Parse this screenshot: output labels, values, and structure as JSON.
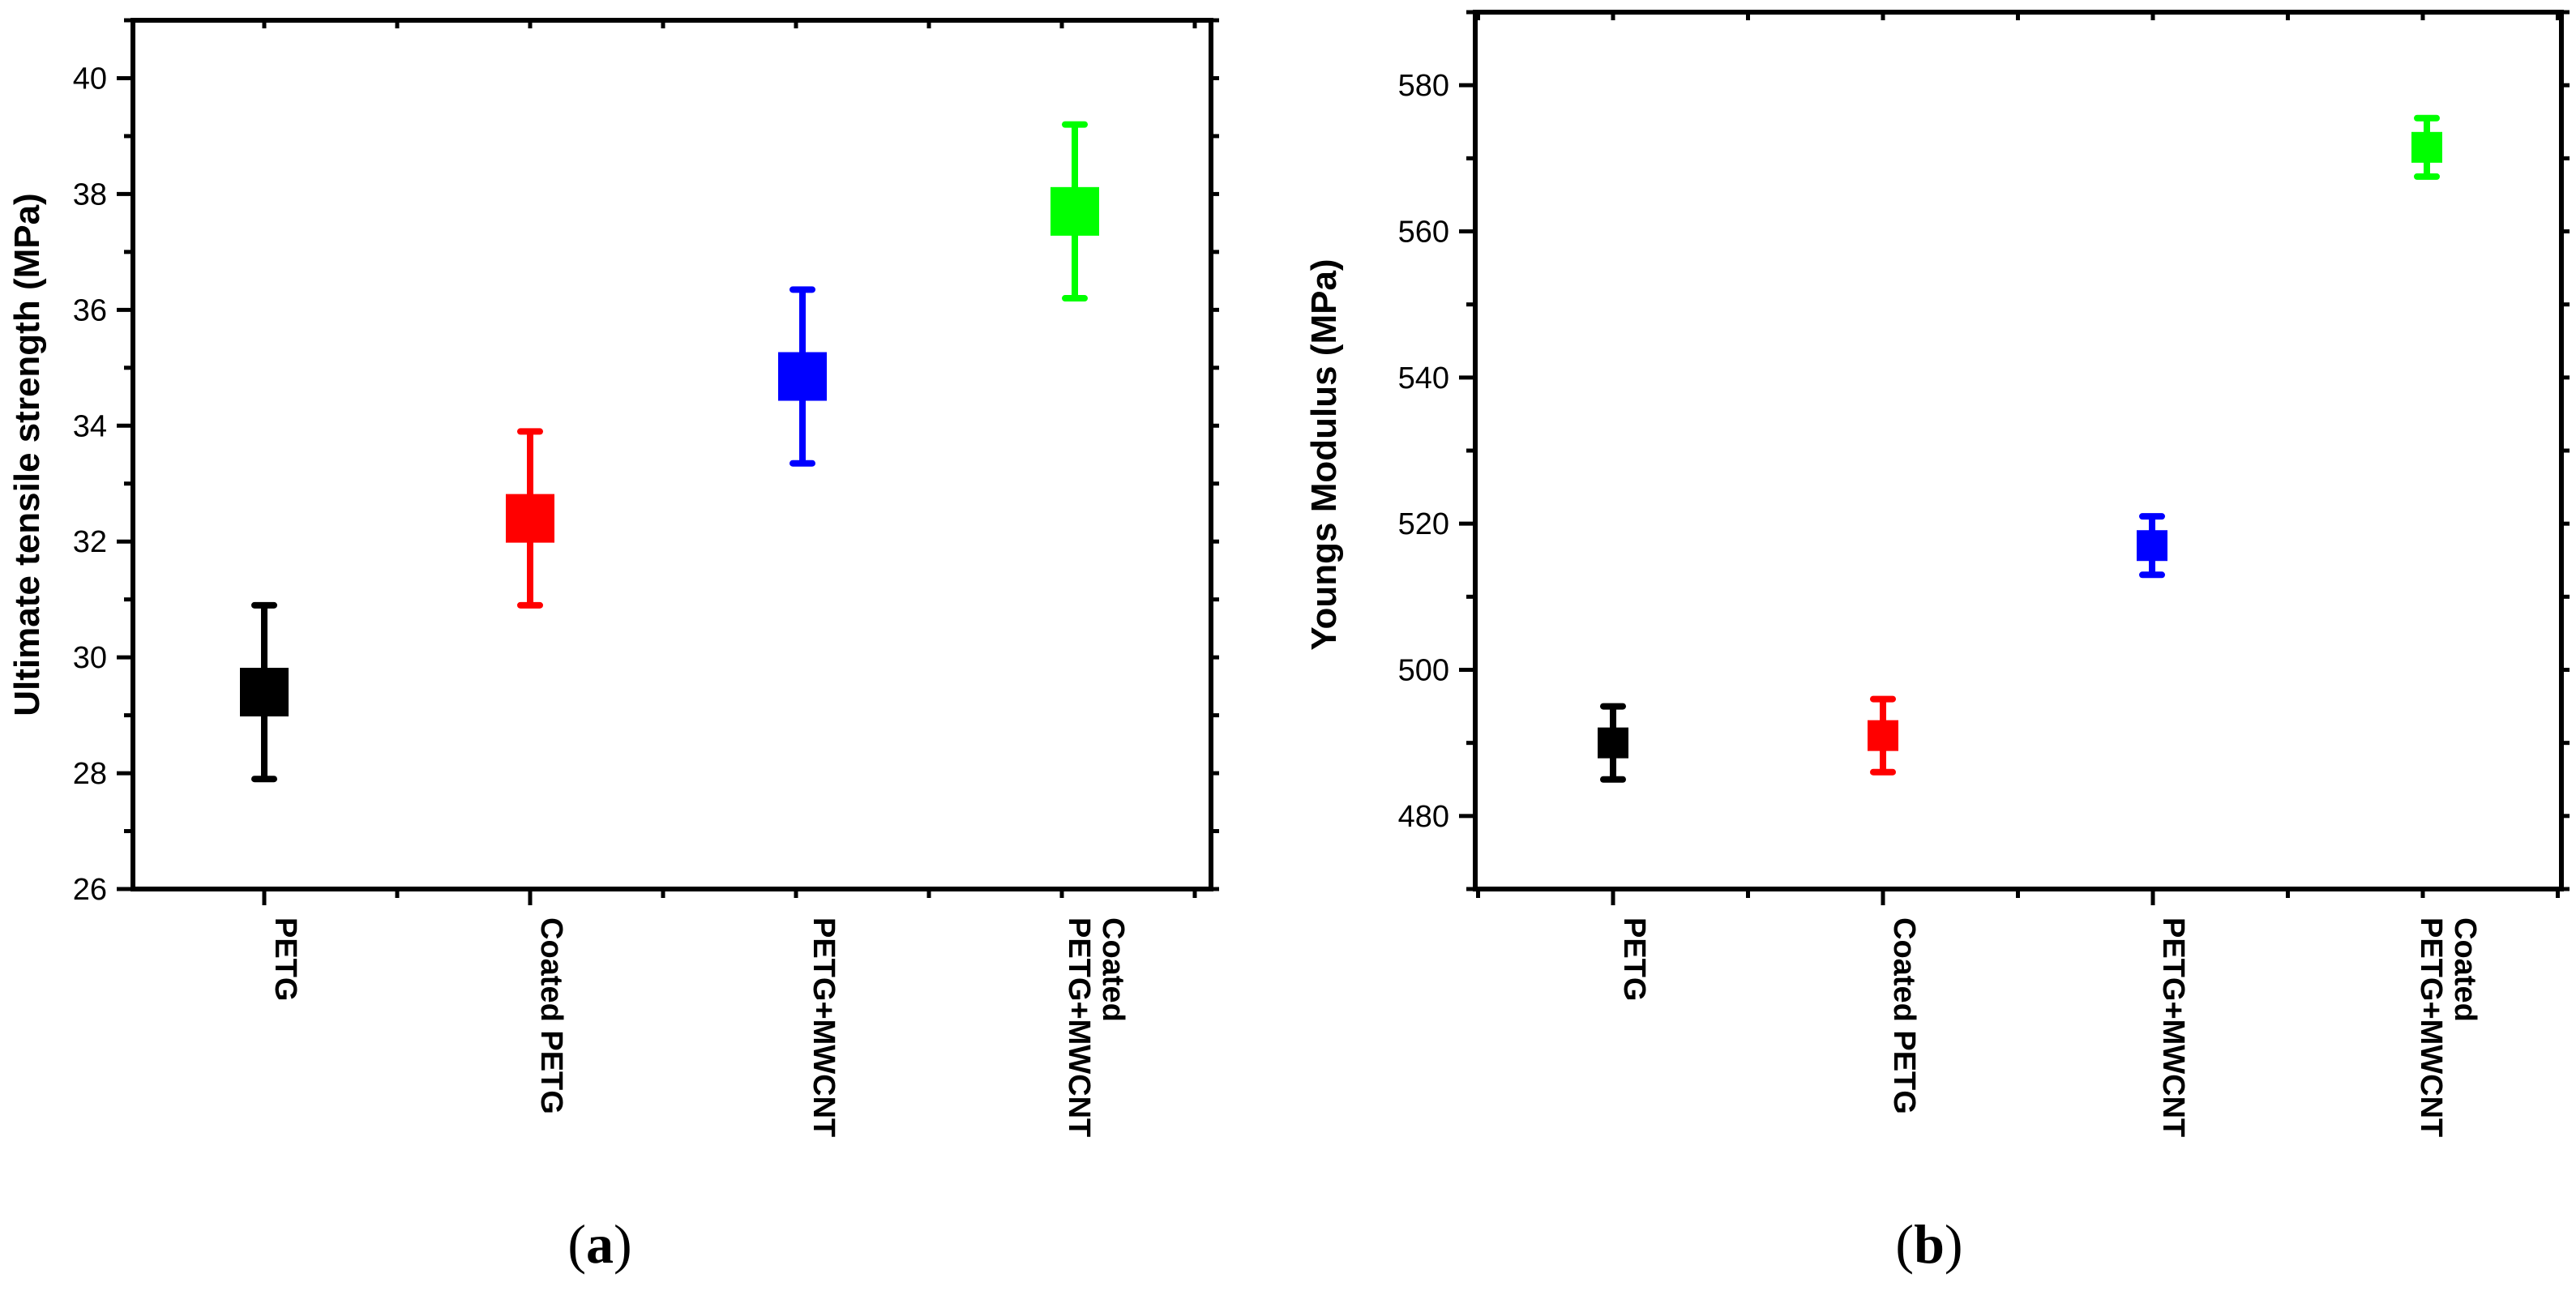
{
  "chart_data": [
    {
      "type": "scatter",
      "panel_label": "a",
      "ylabel": "Ultimate tensile strength (MPa)",
      "ylim": [
        26,
        41
      ],
      "yticks": [
        26,
        28,
        30,
        32,
        34,
        36,
        38,
        40
      ],
      "grid": false,
      "categories": [
        [
          "PETG"
        ],
        [
          "Coated PETG"
        ],
        [
          "PETG+MWCNT"
        ],
        [
          "Coated",
          "PETG+MWCNT"
        ]
      ],
      "values": [
        29.4,
        32.4,
        34.85,
        37.7
      ],
      "errors": [
        1.5,
        1.5,
        1.5,
        1.5
      ],
      "colors": [
        "#000000",
        "#ff0000",
        "#0000ff",
        "#00ff00"
      ]
    },
    {
      "type": "scatter",
      "panel_label": "b",
      "ylabel": "Youngs Modulus (MPa)",
      "ylim": [
        470,
        590
      ],
      "yticks": [
        480,
        500,
        520,
        540,
        560,
        580
      ],
      "grid": false,
      "categories": [
        [
          "PETG"
        ],
        [
          "Coated PETG"
        ],
        [
          "PETG+MWCNT"
        ],
        [
          "Coated",
          "PETG+MWCNT"
        ]
      ],
      "values": [
        490,
        491,
        517,
        571.5
      ],
      "errors": [
        5,
        5,
        4,
        4
      ],
      "colors": [
        "#000000",
        "#ff0000",
        "#0000ff",
        "#00ff00"
      ]
    }
  ]
}
